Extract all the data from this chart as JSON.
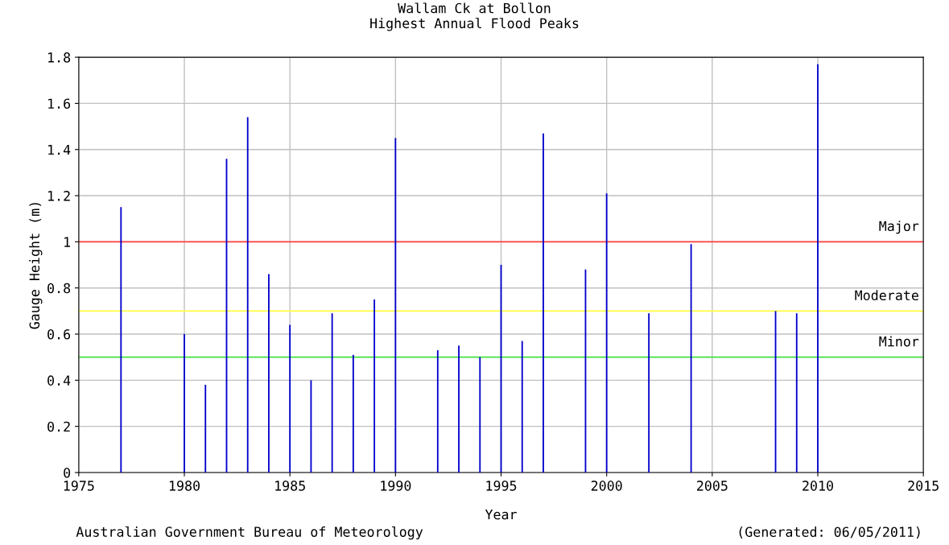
{
  "chart_data": {
    "type": "bar",
    "title": "Wallam Ck at Bollon\nHighest Annual Flood Peaks",
    "xlabel": "Year",
    "ylabel": "Gauge Height (m)",
    "x": [
      1977,
      1980,
      1981,
      1982,
      1983,
      1984,
      1985,
      1986,
      1987,
      1988,
      1989,
      1990,
      1992,
      1993,
      1994,
      1995,
      1996,
      1997,
      1999,
      2000,
      2002,
      2004,
      2008,
      2009,
      2010
    ],
    "values": [
      1.15,
      0.6,
      0.38,
      1.36,
      1.54,
      0.86,
      0.64,
      0.4,
      0.69,
      0.51,
      0.75,
      1.45,
      0.53,
      0.55,
      0.5,
      0.9,
      0.57,
      1.47,
      0.88,
      1.21,
      0.69,
      0.99,
      0.7,
      0.69,
      1.77
    ],
    "color": "#0000cc",
    "xlim": [
      1975,
      2015
    ],
    "xticks": [
      1975,
      1980,
      1985,
      1990,
      1995,
      2000,
      2005,
      2010,
      2015
    ],
    "ylim": [
      0,
      1.8
    ],
    "yticks": [
      0,
      0.2,
      0.4,
      0.6,
      0.8,
      1,
      1.2,
      1.4,
      1.6,
      1.8
    ],
    "grid": true,
    "ref_lines": [
      {
        "axis": "y",
        "value": 1,
        "label": "Major",
        "color": "#ff4040"
      },
      {
        "axis": "y",
        "value": 0.7,
        "label": "Moderate",
        "color": "#ffff40"
      },
      {
        "axis": "y",
        "value": 0.5,
        "label": "Minor",
        "color": "#40e040"
      }
    ],
    "annotations": [
      "Australian Government Bureau of Meteorology",
      "(Generated: 06/05/2011)"
    ]
  }
}
